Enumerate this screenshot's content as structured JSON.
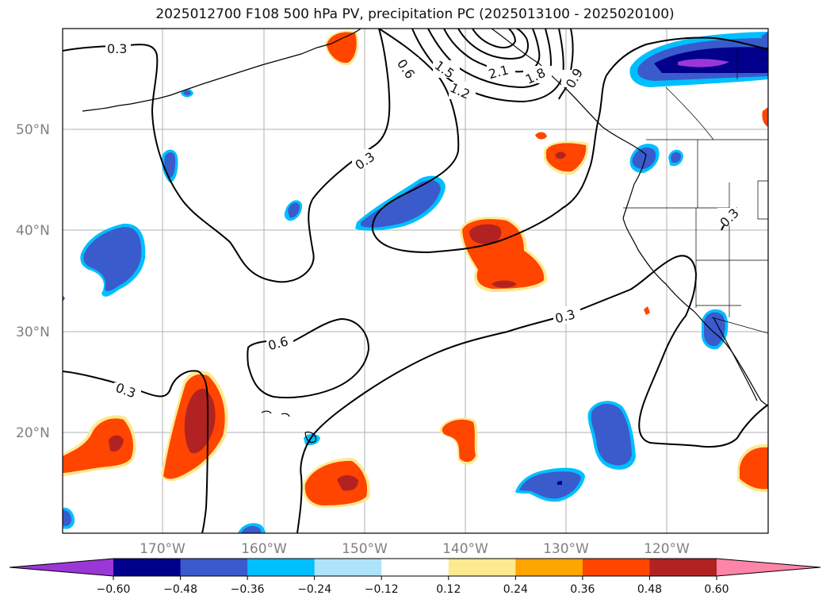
{
  "title": "2025012700 F108 500 hPa PV, precipitation PC (2025013100 - 2025020100)",
  "map": {
    "lat_labels": [
      "50°N",
      "40°N",
      "30°N",
      "20°N"
    ],
    "lon_labels": [
      "170°W",
      "160°W",
      "150°W",
      "140°W",
      "130°W",
      "120°W"
    ],
    "contour_labels": [
      "0.3",
      "0.6",
      "1.5",
      "1.2",
      "2.1",
      "1.8",
      "0.9",
      "0.3",
      "0.3",
      "0.6",
      "0.3",
      "0.3"
    ]
  },
  "colorbar": {
    "ticks": [
      "−0.60",
      "−0.48",
      "−0.36",
      "−0.24",
      "−0.12",
      "0.12",
      "0.24",
      "0.36",
      "0.48",
      "0.60"
    ],
    "colors": [
      "#9a37d6",
      "#00008b",
      "#3a5bcc",
      "#00bfff",
      "#aee4fb",
      "#ffffff",
      "#fde98f",
      "#ffa500",
      "#ff4500",
      "#b22222",
      "#ff85a8"
    ]
  }
}
